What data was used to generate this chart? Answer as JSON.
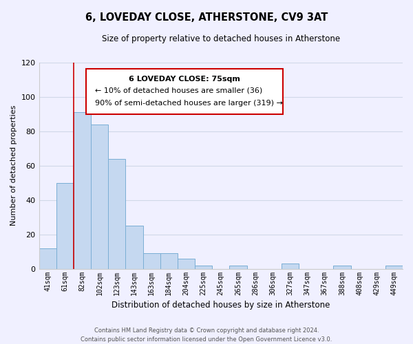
{
  "title": "6, LOVEDAY CLOSE, ATHERSTONE, CV9 3AT",
  "subtitle": "Size of property relative to detached houses in Atherstone",
  "xlabel": "Distribution of detached houses by size in Atherstone",
  "ylabel": "Number of detached properties",
  "bar_labels": [
    "41sqm",
    "61sqm",
    "82sqm",
    "102sqm",
    "123sqm",
    "143sqm",
    "163sqm",
    "184sqm",
    "204sqm",
    "225sqm",
    "245sqm",
    "265sqm",
    "286sqm",
    "306sqm",
    "327sqm",
    "347sqm",
    "367sqm",
    "388sqm",
    "408sqm",
    "429sqm",
    "449sqm"
  ],
  "bar_values": [
    12,
    50,
    91,
    84,
    64,
    25,
    9,
    9,
    6,
    2,
    0,
    2,
    0,
    0,
    3,
    0,
    0,
    2,
    0,
    0,
    2
  ],
  "bar_color": "#c5d8f0",
  "bar_edge_color": "#7aaed4",
  "ylim": [
    0,
    120
  ],
  "yticks": [
    0,
    20,
    40,
    60,
    80,
    100,
    120
  ],
  "vline_x": 2.0,
  "vline_color": "#cc0000",
  "annotation_title": "6 LOVEDAY CLOSE: 75sqm",
  "annotation_line1": "← 10% of detached houses are smaller (36)",
  "annotation_line2": "90% of semi-detached houses are larger (319) →",
  "footer_line1": "Contains HM Land Registry data © Crown copyright and database right 2024.",
  "footer_line2": "Contains public sector information licensed under the Open Government Licence v3.0.",
  "background_color": "#f0f0ff",
  "grid_color": "#d0d8e8"
}
